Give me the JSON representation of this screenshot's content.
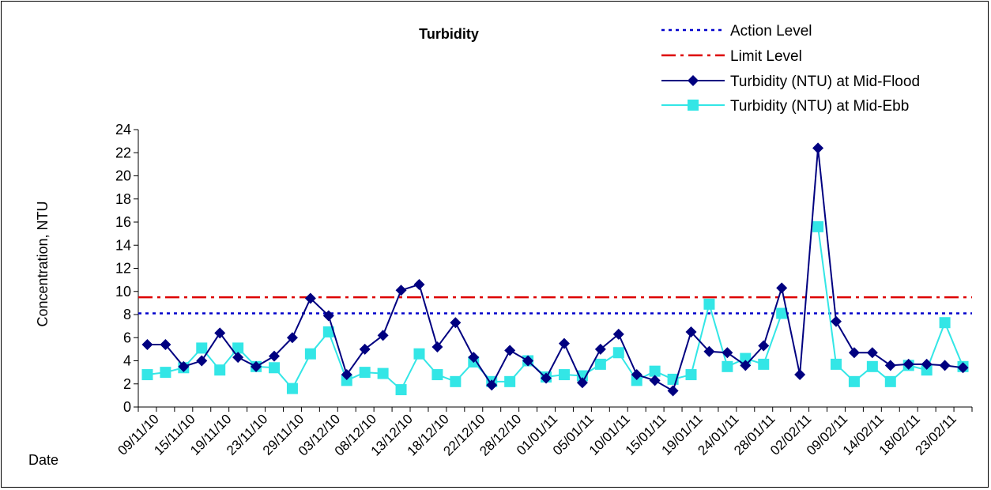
{
  "chart_data": {
    "type": "line",
    "title": "Turbidity",
    "xlabel": "Date",
    "ylabel": "Concentration, NTU",
    "ylim": [
      0,
      24
    ],
    "ytick_step": 2,
    "legend_position": "top-right",
    "grid": false,
    "x_tick_labels": [
      "09/11/10",
      "15/11/10",
      "19/11/10",
      "23/11/10",
      "29/11/10",
      "03/12/10",
      "08/12/10",
      "13/12/10",
      "18/12/10",
      "22/12/10",
      "28/12/10",
      "01/01/11",
      "05/01/11",
      "10/01/11",
      "15/01/11",
      "19/01/11",
      "24/01/11",
      "28/01/11",
      "02/02/11",
      "09/02/11",
      "14/02/11",
      "18/02/11",
      "23/02/11"
    ],
    "action_level": {
      "name": "Action Level",
      "value": 8.1,
      "color": "#0000cc"
    },
    "limit_level": {
      "name": "Limit Level",
      "value": 9.5,
      "color": "#dd0000"
    },
    "series": [
      {
        "name": "Turbidity (NTU) at Mid-Flood",
        "color": "#000080",
        "marker": "diamond",
        "values": [
          5.4,
          5.4,
          3.5,
          4.0,
          6.4,
          4.3,
          3.5,
          4.4,
          6.0,
          9.4,
          7.9,
          2.8,
          5.0,
          6.2,
          10.1,
          10.6,
          5.2,
          7.3,
          4.3,
          1.9,
          4.9,
          4.0,
          2.5,
          5.5,
          2.1,
          5.0,
          6.3,
          2.8,
          2.3,
          1.4,
          6.5,
          4.8,
          4.7,
          3.6,
          5.3,
          10.3,
          2.8,
          22.4,
          7.4,
          4.7,
          4.7,
          3.6,
          3.7,
          3.7,
          3.6,
          3.4
        ]
      },
      {
        "name": "Turbidity (NTU) at Mid-Ebb",
        "color": "#33e6e6",
        "marker": "square",
        "values": [
          2.8,
          3.0,
          3.4,
          5.1,
          3.2,
          5.1,
          3.5,
          3.4,
          1.6,
          4.6,
          6.5,
          2.3,
          3.0,
          2.9,
          1.5,
          4.6,
          2.8,
          2.2,
          3.9,
          2.2,
          2.2,
          4.0,
          2.6,
          2.8,
          2.7,
          3.7,
          4.7,
          2.3,
          3.1,
          2.4,
          2.8,
          8.9,
          3.5,
          4.2,
          3.7,
          8.1,
          null,
          15.6,
          3.7,
          2.2,
          3.5,
          2.2,
          3.6,
          3.2,
          7.3,
          3.5
        ]
      }
    ]
  }
}
